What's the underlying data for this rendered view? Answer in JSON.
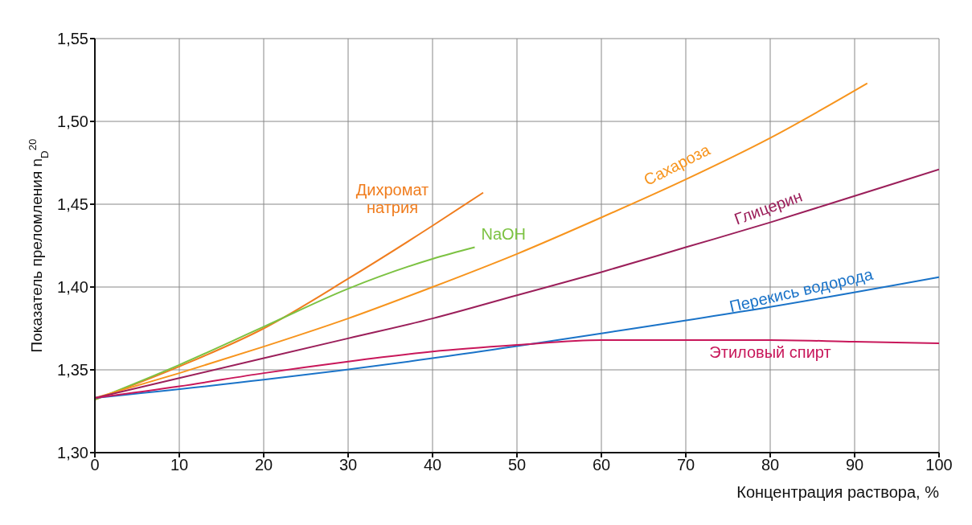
{
  "chart_data": {
    "type": "line",
    "xlabel": "Концентрация раствора, %",
    "ylabel": "Показатель преломления n$_{D}$$^{20}$",
    "xlim": [
      0,
      100
    ],
    "xticks": [
      0,
      10,
      20,
      30,
      40,
      50,
      60,
      70,
      80,
      90,
      100
    ],
    "ylim": [
      1.3,
      1.55
    ],
    "yticks": [
      {
        "value": 1.3,
        "label": "1,30"
      },
      {
        "value": 1.35,
        "label": "1,35"
      },
      {
        "value": 1.4,
        "label": "1,40"
      },
      {
        "value": 1.45,
        "label": "1,45"
      },
      {
        "value": 1.5,
        "label": "1,50"
      },
      {
        "value": 1.55,
        "label": "1,55"
      }
    ],
    "grid": true,
    "marker": "none",
    "series": [
      {
        "name": "Дихромат натрия",
        "color": "#f07d1e",
        "x": [
          0,
          10,
          20,
          30,
          40,
          46
        ],
        "values": [
          1.332,
          1.352,
          1.375,
          1.405,
          1.437,
          1.457
        ]
      },
      {
        "name": "NaOH",
        "color": "#7cc242",
        "x": [
          0,
          10,
          20,
          30,
          40,
          45
        ],
        "values": [
          1.332,
          1.353,
          1.376,
          1.399,
          1.417,
          1.424
        ]
      },
      {
        "name": "Сахароза",
        "color": "#f7941d",
        "x": [
          0,
          10,
          20,
          30,
          40,
          50,
          60,
          70,
          80,
          91.5
        ],
        "values": [
          1.333,
          1.348,
          1.364,
          1.381,
          1.4,
          1.42,
          1.442,
          1.465,
          1.49,
          1.523
        ]
      },
      {
        "name": "Глицерин",
        "color": "#9b1f5a",
        "x": [
          0,
          10,
          20,
          30,
          40,
          50,
          60,
          70,
          80,
          90,
          100
        ],
        "values": [
          1.333,
          1.345,
          1.357,
          1.369,
          1.381,
          1.395,
          1.409,
          1.424,
          1.439,
          1.455,
          1.471
        ]
      },
      {
        "name": "Перекись водорода",
        "color": "#1a73c8",
        "x": [
          0,
          20,
          40,
          60,
          80,
          100
        ],
        "values": [
          1.333,
          1.344,
          1.357,
          1.372,
          1.388,
          1.406
        ]
      },
      {
        "name": "Этиловый спирт",
        "color": "#c8175a",
        "x": [
          0,
          10,
          20,
          30,
          40,
          50,
          60,
          70,
          80,
          90,
          100
        ],
        "values": [
          1.333,
          1.34,
          1.348,
          1.355,
          1.361,
          1.365,
          1.368,
          1.368,
          1.368,
          1.367,
          1.366
        ]
      }
    ]
  }
}
